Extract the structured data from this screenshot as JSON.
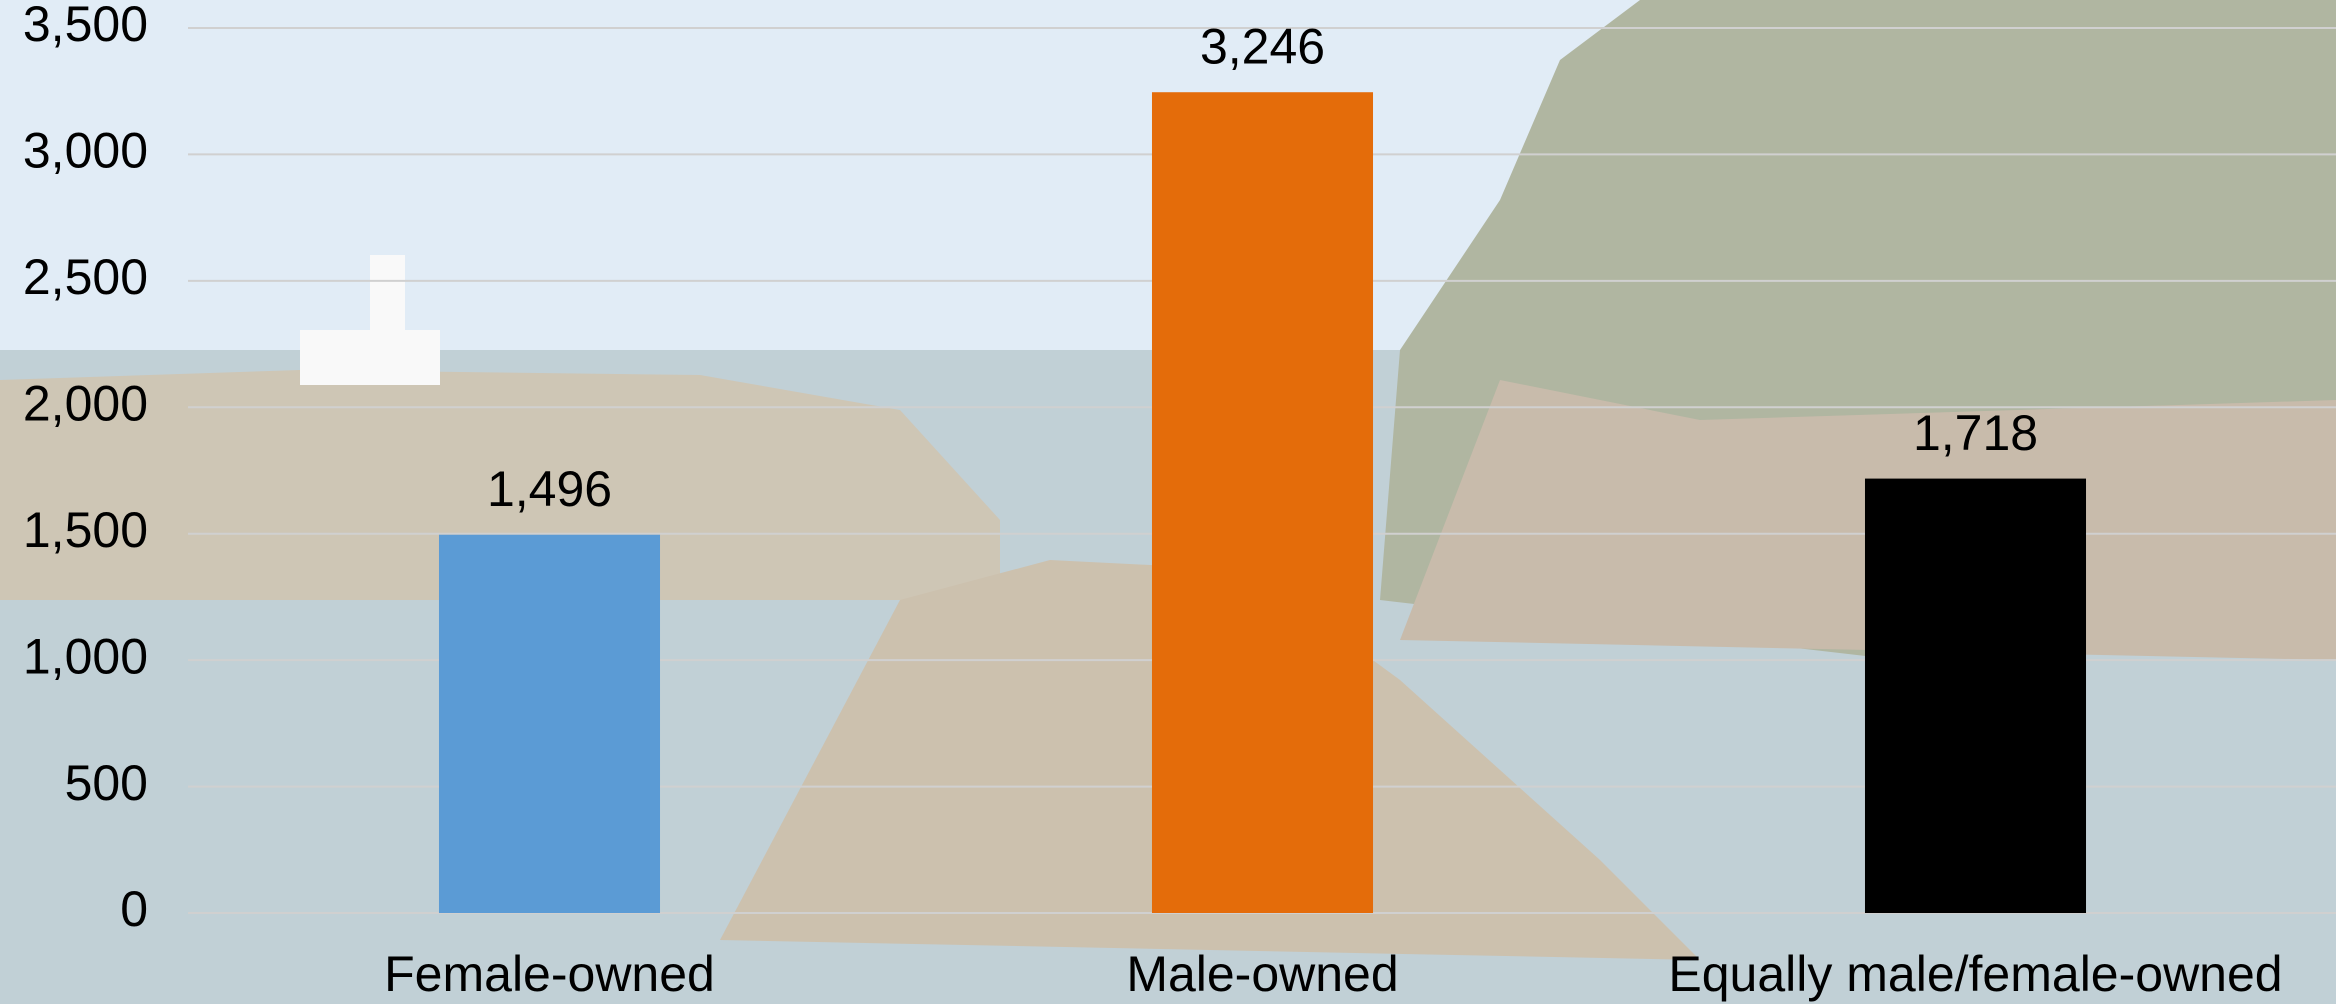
{
  "chart_data": {
    "type": "bar",
    "categories": [
      "Female-owned",
      "Male-owned",
      "Equally male/female-owned"
    ],
    "values": [
      1496,
      3246,
      1718
    ],
    "value_labels": [
      "1,496",
      "3,246",
      "1,718"
    ],
    "colors": [
      "#5b9bd5",
      "#e46c0a",
      "#000000"
    ],
    "ylim": [
      0,
      3500
    ],
    "yticks": [
      0,
      500,
      {
        "value": 1000,
        "label": "1,000"
      },
      {
        "value": 1500,
        "label": "1,500"
      },
      {
        "value": 2000,
        "label": "2,000"
      },
      {
        "value": 2500,
        "label": "2,500"
      },
      {
        "value": 3000,
        "label": "3,000"
      },
      {
        "value": 3500,
        "label": "3,500"
      }
    ],
    "grid": true
  }
}
